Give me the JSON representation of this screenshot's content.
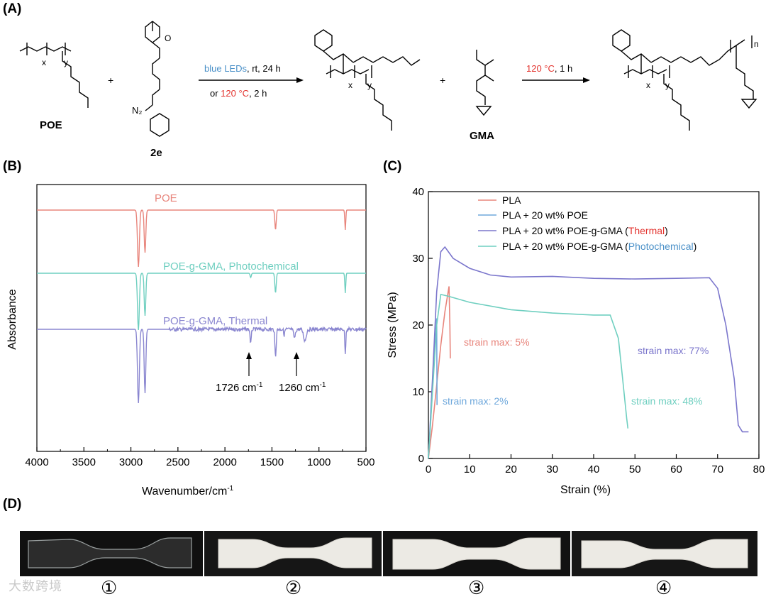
{
  "panels": {
    "a": "(A)",
    "b": "(B)",
    "c": "(C)",
    "d": "(D)"
  },
  "scheme": {
    "poe_label": "POE",
    "compound_2e": "2e",
    "gma_label": "GMA",
    "plus": "+",
    "sub_x": "x",
    "sub_y": "y",
    "sub_n": "n",
    "n2": "N₂",
    "o": "O",
    "arrow1_line1_blue": "blue LEDs",
    "arrow1_line1_rest": ", rt, 24 h",
    "arrow1_line2_pre": "or ",
    "arrow1_line2_red": "120 °C",
    "arrow1_line2_rest": ", 2 h",
    "arrow2_red": "120 °C",
    "arrow2_rest": ", 1 h",
    "colors": {
      "blue": "#4a90c8",
      "red": "#e3342f"
    }
  },
  "ir": {
    "ylabel": "Absorbance",
    "xlabel_main": "Wavenumber/cm",
    "xlabel_sup": "-1",
    "xticks": [
      "4000",
      "3500",
      "3000",
      "2500",
      "2000",
      "1500",
      "1000",
      "500"
    ],
    "trace_poe": "POE",
    "trace_photo": "POE-g-GMA, Photochemical",
    "trace_thermal": "POE-g-GMA, Thermal",
    "peak1_main": "1726 cm",
    "peak1_sup": "-1",
    "peak2_main": "1260 cm",
    "peak2_sup": "-1",
    "colors": {
      "poe": "#e8857c",
      "photo": "#6fcfc0",
      "thermal": "#8a86d0"
    }
  },
  "stress": {
    "ylabel": "Stress (MPa)",
    "xlabel": "Strain (%)",
    "legend": [
      "PLA",
      "PLA + 20 wt% POE",
      "PLA + 20 wt% POE-g-GMA (",
      "PLA + 20 wt% POE-g-GMA ("
    ],
    "legend_thermal": "Thermal",
    "legend_photo": "Photochemical",
    "legend_close": ")",
    "ann_pla": "strain max: 5%",
    "ann_poe": "strain max: 2%",
    "ann_thermal": "strain max: 77%",
    "ann_photo": "strain max: 48%",
    "colors": {
      "pla": "#e8857c",
      "poe": "#6fa8dc",
      "thermal": "#7b76cc",
      "photo": "#6fcfc0",
      "red": "#e3342f",
      "blue": "#4a90c8"
    }
  },
  "photos": {
    "labels": [
      "①",
      "②",
      "③",
      "④"
    ]
  },
  "watermark": "大数跨境",
  "chart_data": [
    {
      "type": "line",
      "title": "",
      "xlabel": "Wavenumber/cm-1",
      "ylabel": "Absorbance",
      "xlim": [
        4000,
        500
      ],
      "series": [
        {
          "name": "POE",
          "peaks_cm-1": [
            2920,
            2850,
            1462,
            720
          ]
        },
        {
          "name": "POE-g-GMA, Photochemical",
          "peaks_cm-1": [
            2920,
            2850,
            1726,
            1462,
            720
          ]
        },
        {
          "name": "POE-g-GMA, Thermal",
          "peaks_cm-1": [
            2920,
            2850,
            1726,
            1462,
            1260,
            1150,
            720
          ]
        }
      ],
      "annotations": [
        "1726 cm-1",
        "1260 cm-1"
      ]
    },
    {
      "type": "line",
      "title": "",
      "xlabel": "Strain (%)",
      "ylabel": "Stress (MPa)",
      "xlim": [
        0,
        80
      ],
      "ylim": [
        0,
        40
      ],
      "xticks": [
        0,
        10,
        20,
        30,
        40,
        50,
        60,
        70,
        80
      ],
      "yticks": [
        0,
        10,
        20,
        30,
        40
      ],
      "series": [
        {
          "name": "PLA",
          "x": [
            0,
            1,
            2,
            3,
            4,
            5,
            5.2,
            5.3
          ],
          "y": [
            0,
            5,
            11,
            17,
            22,
            25.8,
            20,
            15
          ]
        },
        {
          "name": "PLA + 20 wt% POE",
          "x": [
            0,
            0.5,
            1,
            1.5,
            2,
            2.1
          ],
          "y": [
            0,
            5,
            11,
            16,
            21,
            8
          ]
        },
        {
          "name": "PLA + 20 wt% POE-g-GMA (Thermal)",
          "x": [
            0,
            1,
            2,
            3,
            4,
            6,
            10,
            15,
            20,
            30,
            40,
            50,
            60,
            68,
            70,
            72,
            74,
            75,
            76,
            77.5
          ],
          "y": [
            0,
            12,
            25,
            31,
            31.7,
            30,
            28.5,
            27.5,
            27.2,
            27.3,
            27,
            26.9,
            27,
            27.1,
            25.5,
            20,
            12,
            5,
            4,
            4
          ]
        },
        {
          "name": "PLA + 20 wt% POE-g-GMA (Photochemical)",
          "x": [
            0,
            1,
            2,
            3,
            5,
            10,
            20,
            30,
            40,
            44,
            46,
            47,
            48,
            48.3
          ],
          "y": [
            0,
            10,
            20,
            24.6,
            24.3,
            23.4,
            22.3,
            21.8,
            21.5,
            21.5,
            18,
            12,
            6,
            4.5
          ]
        }
      ],
      "annotations": [
        "strain max: 5%",
        "strain max: 2%",
        "strain max: 77%",
        "strain max: 48%"
      ]
    }
  ]
}
